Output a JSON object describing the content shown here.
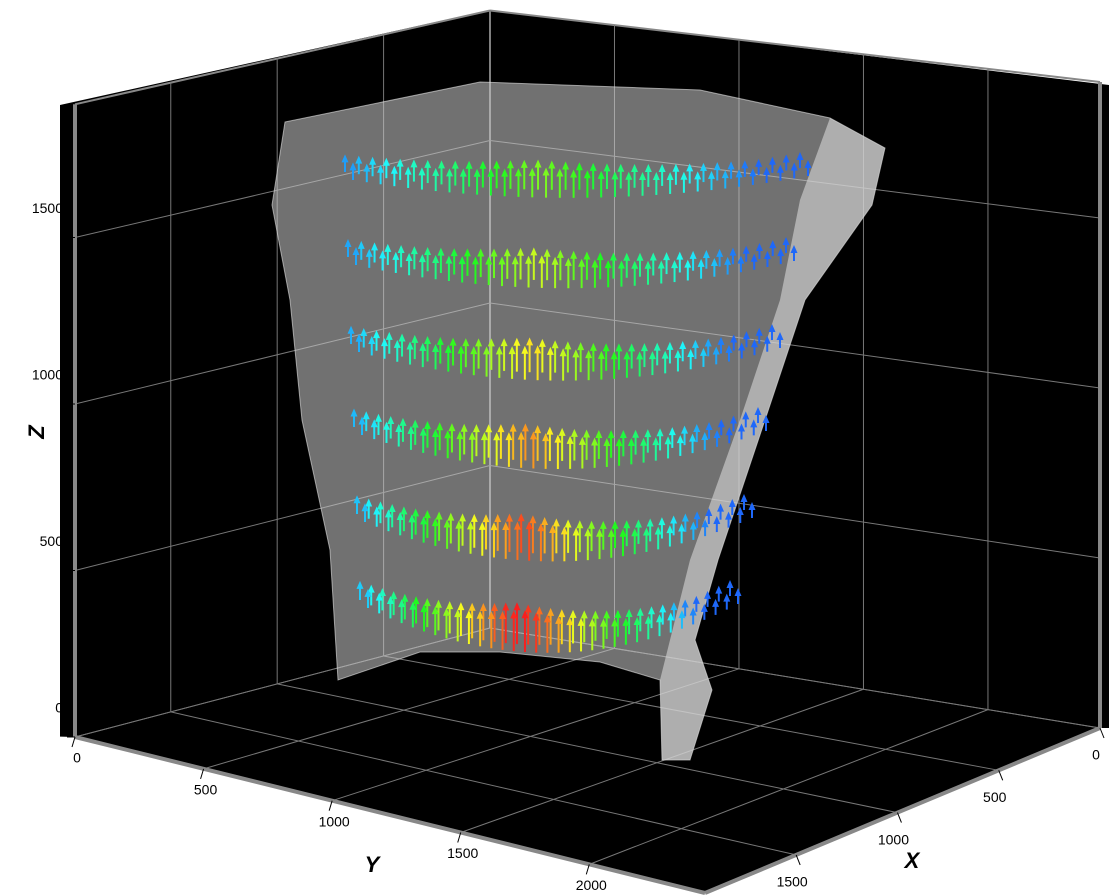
{
  "chart_data": {
    "type": "quiver3d",
    "x_label": "X",
    "y_label": "Y",
    "z_label": "Z",
    "xlim": [
      0,
      1950
    ],
    "ylim": [
      0,
      2450
    ],
    "zlim": [
      0,
      1900
    ],
    "xticks": [
      0,
      500,
      1000,
      1500
    ],
    "yticks": [
      0,
      500,
      1000,
      1500,
      2000
    ],
    "zticks": [
      0,
      500,
      1000,
      1500
    ],
    "grid": true
  }
}
